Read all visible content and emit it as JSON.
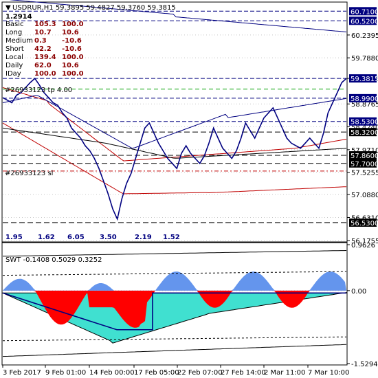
{
  "chart_data": [
    {
      "type": "line",
      "title": "USDRUR,H1  59.3895 59.4827 59.3760 59.3815",
      "symbol_caret": "▼",
      "header_value": "1.2914",
      "stats": [
        {
          "label": "Basic",
          "v1": "105.3",
          "v2": "100.0"
        },
        {
          "label": "Long",
          "v1": "10.7",
          "v2": "10.6"
        },
        {
          "label": "Medium",
          "v1": "0.3",
          "v2": "-10.6"
        },
        {
          "label": "Short",
          "v1": "42.2",
          "v2": "-10.6"
        },
        {
          "label": "Local",
          "v1": "139.4",
          "v2": "100.0"
        },
        {
          "label": "Daily",
          "v1": "62.0",
          "v2": "10.6"
        },
        {
          "label": "IDay",
          "v1": "100.0",
          "v2": "100.0"
        }
      ],
      "ylim": [
        56.1755,
        60.85
      ],
      "y_ticks": [
        "60.2395",
        "59.7880",
        "59.3815",
        "58.8765",
        "58.4240",
        "57.9710",
        "57.5255",
        "57.0880",
        "56.6310",
        "56.1755"
      ],
      "price_tags": [
        {
          "value": 60.71,
          "label": "60.7100",
          "color": "#000080"
        },
        {
          "value": 60.52,
          "label": "60.5200",
          "color": "#000080"
        },
        {
          "value": 59.3815,
          "label": "59.3815",
          "color": "#000080"
        },
        {
          "value": 58.99,
          "label": "58.9900",
          "color": "#000080"
        },
        {
          "value": 58.53,
          "label": "58.5300",
          "color": "#000080"
        },
        {
          "value": 58.32,
          "label": "58.3200",
          "color": "#000000"
        },
        {
          "value": 57.86,
          "label": "57.8600",
          "color": "#000000"
        },
        {
          "value": 57.7,
          "label": "57.7000",
          "color": "#000000"
        },
        {
          "value": 56.53,
          "label": "56.5300",
          "color": "#000000"
        }
      ],
      "annotations": [
        "#26933123 tp 4.00",
        "#26933123 sl"
      ],
      "bottom_values": [
        "1.95",
        "1.62",
        "6.05",
        "3.50",
        "2.19",
        "1.52"
      ],
      "price_series": [
        59.0,
        58.95,
        58.9,
        59.05,
        59.1,
        59.2,
        59.3,
        59.38,
        59.25,
        59.1,
        59.0,
        58.9,
        58.85,
        58.7,
        58.6,
        58.4,
        58.3,
        58.2,
        58.05,
        57.95,
        57.8,
        57.6,
        57.35,
        57.1,
        56.8,
        56.6,
        57.0,
        57.3,
        57.5,
        57.8,
        58.1,
        58.4,
        58.5,
        58.3,
        58.1,
        57.95,
        57.8,
        57.7,
        57.6,
        57.9,
        58.05,
        57.9,
        57.8,
        57.7,
        57.85,
        58.1,
        58.4,
        58.2,
        58.0,
        57.9,
        57.8,
        57.95,
        58.2,
        58.5,
        58.35,
        58.2,
        58.4,
        58.6,
        58.7,
        58.8,
        58.6,
        58.4,
        58.2,
        58.1,
        58.05,
        58.0,
        58.1,
        58.2,
        58.1,
        58.0,
        58.3,
        58.7,
        58.9,
        59.1,
        59.3,
        59.3815
      ]
    },
    {
      "type": "area",
      "title": "SWT -0.1408 0.5029 0.3252",
      "y_ticks": [
        "0.9626",
        "0.00",
        "-1.5294"
      ],
      "ylim": [
        -1.5294,
        0.9626
      ]
    }
  ],
  "x_ticks": [
    "3 Feb 2017",
    "9 Feb 01:00",
    "14 Feb 00:00",
    "17 Feb 05:00",
    "22 Feb 07:00",
    "27 Feb 14:00",
    "2 Mar 11:00",
    "7 Mar 10:00"
  ]
}
